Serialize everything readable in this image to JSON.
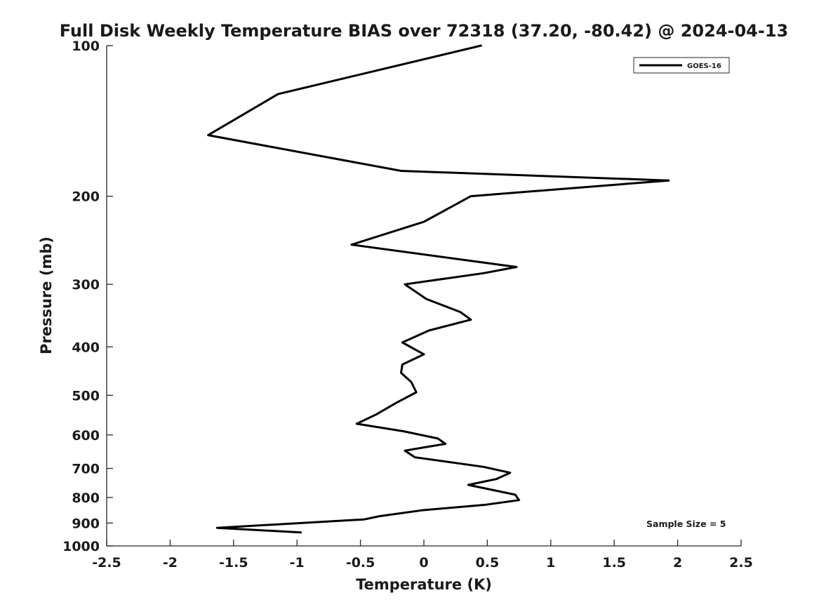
{
  "chart_data": {
    "type": "line",
    "title": "Full Disk Weekly Temperature BIAS over 72318 (37.20, -80.42) @ 2024-04-13",
    "xlabel": "Temperature (K)",
    "ylabel": "Pressure (mb)",
    "xlim": [
      -2.5,
      2.5
    ],
    "ylim": [
      100,
      1000
    ],
    "y_scale": "log",
    "y_reversed": true,
    "xticks": [
      -2.5,
      -2,
      -1.5,
      -1,
      -0.5,
      0,
      0.5,
      1,
      1.5,
      2,
      2.5
    ],
    "xtick_labels": [
      "-2.5",
      "-2",
      "-1.5",
      "-1",
      "-0.5",
      "0",
      "0.5",
      "1",
      "1.5",
      "2",
      "2.5"
    ],
    "yticks": [
      100,
      200,
      300,
      400,
      500,
      600,
      700,
      800,
      900,
      1000
    ],
    "ytick_labels": [
      "100",
      "200",
      "300",
      "400",
      "500",
      "600",
      "700",
      "800",
      "900",
      "1000"
    ],
    "grid": false,
    "legend_position": "top-right",
    "annotation": "Sample Size = 5",
    "series": [
      {
        "name": "GOES-16",
        "color": "#000000",
        "x": [
          0.45,
          -1.15,
          -1.7,
          -0.18,
          1.93,
          0.37,
          0.0,
          -0.57,
          0.73,
          0.47,
          -0.15,
          0.02,
          0.29,
          0.37,
          0.04,
          -0.17,
          0.0,
          -0.17,
          -0.18,
          -0.1,
          -0.06,
          -0.22,
          -0.37,
          -0.53,
          -0.16,
          0.11,
          0.17,
          -0.15,
          -0.07,
          0.47,
          0.68,
          0.57,
          0.35,
          0.72,
          0.75,
          0.49,
          -0.02,
          -0.35,
          -0.47,
          -1.63,
          -0.97
        ],
        "y": [
          100,
          125,
          151,
          178,
          186,
          200,
          225,
          250,
          277,
          285,
          300,
          321,
          341,
          353,
          371,
          392,
          414,
          434,
          451,
          470,
          493,
          518,
          545,
          570,
          590,
          610,
          625,
          645,
          665,
          695,
          714,
          735,
          755,
          790,
          810,
          827,
          849,
          872,
          885,
          920,
          940
        ]
      }
    ]
  }
}
